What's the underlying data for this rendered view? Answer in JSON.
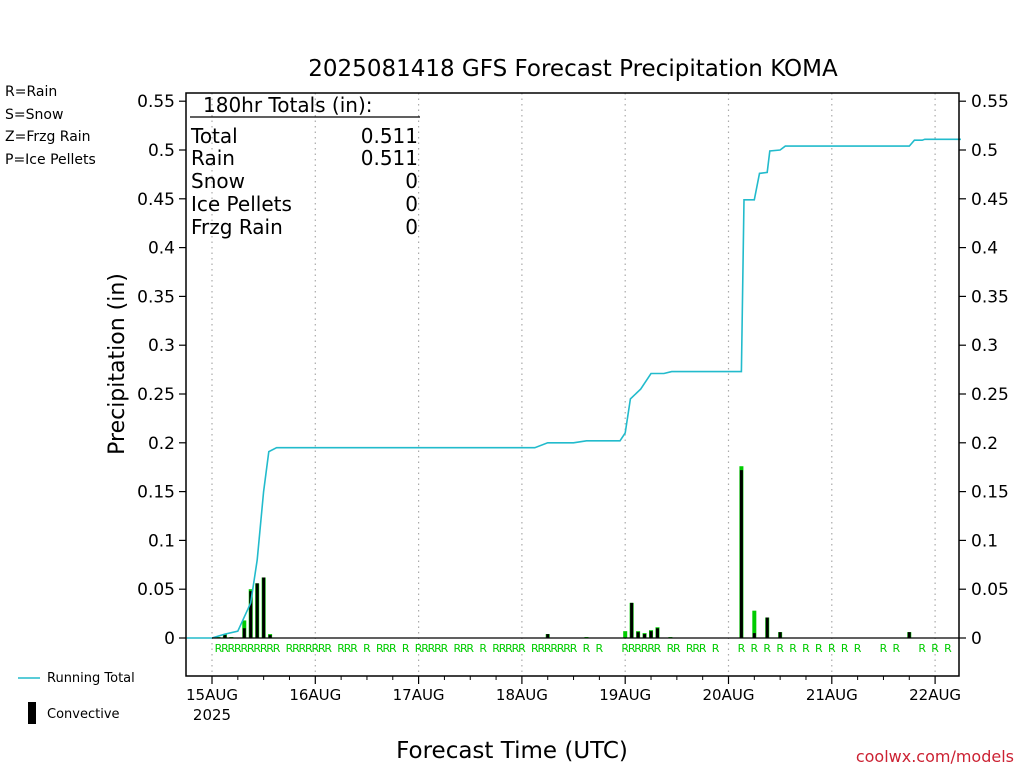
{
  "chart_data": {
    "type": "bar",
    "title": "2025081418 GFS Forecast Precipitation KOMA",
    "ylabel": "Precipitation (in)",
    "xlabel": "Forecast Time (UTC)",
    "ylim": [
      -0.04,
      0.56
    ],
    "yticks": [
      "0.55",
      "0.5",
      "0.45",
      "0.4",
      "0.35",
      "0.3",
      "0.25",
      "0.2",
      "0.15",
      "0.1",
      "0.05",
      "0"
    ],
    "xlim": [
      -0.25,
      7.25
    ],
    "x_units": "days since 15AUG 00Z",
    "day_labels": [
      "15AUG",
      "16AUG",
      "17AUG",
      "18AUG",
      "19AUG",
      "20AUG",
      "21AUG",
      "22AUG"
    ],
    "year_label": "2025",
    "grid": "vertical dotted at day boundaries",
    "legend_types": [
      {
        "label": "R=Rain",
        "color": "#00cc00"
      },
      {
        "label": "S=Snow",
        "color": "#3355dd"
      },
      {
        "label": "Z=Frzg Rain",
        "color": "#ee8833"
      },
      {
        "label": "P=Ice Pellets",
        "color": "#ee2299"
      }
    ],
    "legend_bottom": {
      "running_total": "Running Total",
      "convective": "Convective"
    },
    "totals": {
      "header": "180hr Totals (in):",
      "rows": [
        {
          "label": "Total",
          "value": "0.511"
        },
        {
          "label": "Rain",
          "value": "0.511"
        },
        {
          "label": "Snow",
          "value": "0"
        },
        {
          "label": "Ice Pellets",
          "value": "0"
        },
        {
          "label": "Frzg Rain",
          "value": "0"
        }
      ]
    },
    "series": [
      {
        "name": "Running Total",
        "color": "#22bbcc",
        "points": [
          [
            -0.25,
            0
          ],
          [
            0.0,
            0.0
          ],
          [
            0.125,
            0.004
          ],
          [
            0.25,
            0.007
          ],
          [
            0.375,
            0.036
          ],
          [
            0.4375,
            0.08
          ],
          [
            0.5,
            0.15
          ],
          [
            0.55,
            0.191
          ],
          [
            0.625,
            0.195
          ],
          [
            3.125,
            0.195
          ],
          [
            3.25,
            0.2
          ],
          [
            3.5,
            0.2
          ],
          [
            3.625,
            0.202
          ],
          [
            3.75,
            0.202
          ],
          [
            3.95,
            0.202
          ],
          [
            4.0,
            0.21
          ],
          [
            4.05,
            0.245
          ],
          [
            4.15,
            0.255
          ],
          [
            4.25,
            0.271
          ],
          [
            4.375,
            0.271
          ],
          [
            4.45,
            0.273
          ],
          [
            4.5,
            0.273
          ],
          [
            5.125,
            0.273
          ],
          [
            5.15,
            0.449
          ],
          [
            5.25,
            0.449
          ],
          [
            5.3,
            0.476
          ],
          [
            5.375,
            0.477
          ],
          [
            5.4,
            0.499
          ],
          [
            5.5,
            0.5
          ],
          [
            5.55,
            0.504
          ],
          [
            5.75,
            0.504
          ],
          [
            6.75,
            0.504
          ],
          [
            6.8,
            0.51
          ],
          [
            6.875,
            0.51
          ],
          [
            6.9,
            0.511
          ],
          [
            7.25,
            0.511
          ]
        ]
      },
      {
        "name": "Rain",
        "color": "#00cc00",
        "bars": [
          [
            0.0625,
            0.001
          ],
          [
            0.125,
            0.004
          ],
          [
            0.1875,
            0.001
          ],
          [
            0.3125,
            0.018
          ],
          [
            0.375,
            0.05
          ],
          [
            0.4375,
            0.056
          ],
          [
            0.5,
            0.062
          ],
          [
            0.5625,
            0.004
          ],
          [
            3.25,
            0.004
          ],
          [
            3.625,
            0.001
          ],
          [
            4.0,
            0.007
          ],
          [
            4.0625,
            0.036
          ],
          [
            4.125,
            0.007
          ],
          [
            4.1875,
            0.005
          ],
          [
            4.25,
            0.008
          ],
          [
            4.3125,
            0.011
          ],
          [
            4.4375,
            0.001
          ],
          [
            5.125,
            0.176
          ],
          [
            5.25,
            0.028
          ],
          [
            5.375,
            0.021
          ],
          [
            5.5,
            0.006
          ],
          [
            6.75,
            0.006
          ]
        ]
      },
      {
        "name": "Convective",
        "color": "#000000",
        "bars": [
          [
            0.125,
            0.003
          ],
          [
            0.3125,
            0.01
          ],
          [
            0.375,
            0.048
          ],
          [
            0.4375,
            0.056
          ],
          [
            0.5,
            0.062
          ],
          [
            0.5625,
            0.003
          ],
          [
            3.25,
            0.004
          ],
          [
            4.0625,
            0.036
          ],
          [
            4.125,
            0.006
          ],
          [
            4.1875,
            0.004
          ],
          [
            4.25,
            0.007
          ],
          [
            4.3125,
            0.01
          ],
          [
            5.125,
            0.172
          ],
          [
            5.25,
            0.005
          ],
          [
            5.375,
            0.021
          ],
          [
            5.5,
            0.006
          ],
          [
            6.75,
            0.006
          ]
        ]
      }
    ],
    "type_markers": {
      "letter": "R",
      "color": "#00cc00",
      "x": [
        0.0625,
        0.125,
        0.1875,
        0.25,
        0.3125,
        0.375,
        0.4375,
        0.5,
        0.5625,
        0.625,
        0.75,
        0.8125,
        0.875,
        0.9375,
        1.0,
        1.0625,
        1.125,
        1.25,
        1.3125,
        1.375,
        1.5,
        1.625,
        1.6875,
        1.75,
        1.875,
        2.0,
        2.0625,
        2.125,
        2.1875,
        2.25,
        2.375,
        2.4375,
        2.5,
        2.625,
        2.75,
        2.8125,
        2.875,
        2.9375,
        3.0,
        3.125,
        3.1875,
        3.25,
        3.3125,
        3.375,
        3.4375,
        3.5,
        3.625,
        3.75,
        4.0,
        4.0625,
        4.125,
        4.1875,
        4.25,
        4.3125,
        4.4375,
        4.5,
        4.625,
        4.6875,
        4.75,
        4.875,
        5.125,
        5.25,
        5.375,
        5.5,
        5.625,
        5.75,
        5.875,
        6.0,
        6.125,
        6.25,
        6.5,
        6.625,
        6.875,
        7.0,
        7.125
      ]
    },
    "credit": "coolwx.com/models"
  }
}
